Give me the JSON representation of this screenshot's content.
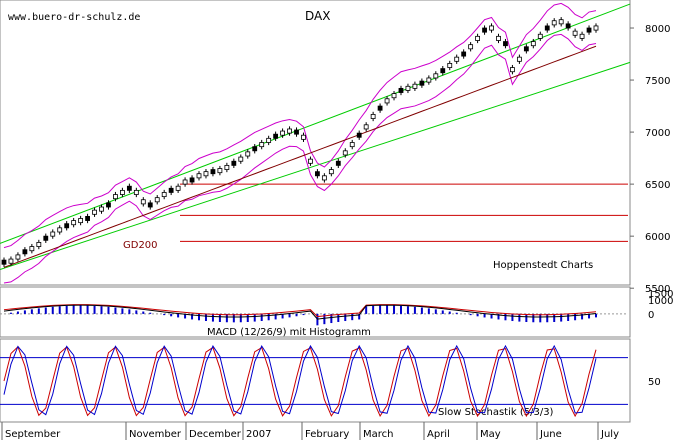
{
  "chart_data": {
    "type": "line",
    "title": "DAX",
    "watermark": "www.buero-dr-schulz.de",
    "source_label": "Hoppenstedt Charts",
    "x_labels": [
      "September",
      "November",
      "December",
      "2007",
      "February",
      "March",
      "April",
      "May",
      "June",
      "July"
    ],
    "price_panel": {
      "ylim": [
        5550,
        8250
      ],
      "y_ticks": [
        8000,
        7500,
        7000,
        6500,
        6000,
        5500
      ],
      "series_name": "DAX",
      "ma_label": "GD200",
      "price": [
        5750,
        5760,
        5800,
        5850,
        5880,
        5920,
        5980,
        6020,
        6060,
        6100,
        6130,
        6150,
        6170,
        6230,
        6260,
        6300,
        6380,
        6420,
        6460,
        6420,
        6330,
        6300,
        6350,
        6400,
        6440,
        6460,
        6520,
        6540,
        6580,
        6600,
        6620,
        6630,
        6660,
        6700,
        6740,
        6790,
        6840,
        6880,
        6920,
        6960,
        6990,
        7010,
        7000,
        6950,
        6720,
        6600,
        6560,
        6620,
        6700,
        6800,
        6880,
        6970,
        7050,
        7150,
        7230,
        7300,
        7350,
        7400,
        7420,
        7440,
        7470,
        7500,
        7540,
        7590,
        7640,
        7700,
        7750,
        7820,
        7900,
        7980,
        8000,
        7900,
        7850,
        7600,
        7700,
        7800,
        7850,
        7920,
        8000,
        8050,
        8060,
        8020,
        7950,
        7920,
        7980,
        8000
      ],
      "gd200": [
        5700,
        5725,
        5750,
        5775,
        5800,
        5825,
        5850,
        5875,
        5900,
        5925,
        5950,
        5975,
        6000,
        6025,
        6050,
        6075,
        6100,
        6125,
        6150,
        6175,
        6200,
        6225,
        6250,
        6275,
        6300,
        6325,
        6350,
        6375,
        6400,
        6425,
        6450,
        6475,
        6500,
        6525,
        6550,
        6575,
        6600,
        6625,
        6650,
        6675,
        6700,
        6725,
        6750,
        6775,
        6800,
        6825,
        6850,
        6875,
        6900,
        6925,
        6950,
        6975,
        7000,
        7025,
        7050,
        7075,
        7100,
        7125,
        7150,
        7175,
        7200,
        7225,
        7250,
        7275,
        7300,
        7325,
        7350,
        7375,
        7400,
        7425,
        7450,
        7475,
        7500,
        7525,
        7550,
        7575,
        7600,
        7625,
        7650,
        7675,
        7700,
        7725,
        7750,
        7775,
        7800,
        7825
      ],
      "horizontal_lines": [
        6500,
        6200,
        5950
      ]
    },
    "macd_panel": {
      "label": "MACD (12/26/9) mit Histogramm",
      "y_ticks": [
        1500,
        1000,
        0
      ]
    },
    "stochastic_panel": {
      "label": "Slow Stochastik (5/3/3)",
      "y_ticks": [
        50
      ],
      "levels": [
        80,
        20
      ]
    },
    "colors": {
      "price": "#000000",
      "channel": "#00cc00",
      "bollinger": "#cc00cc",
      "gd200": "#800000",
      "support": "#cc0000",
      "macd_hist": "#0000cc",
      "stoch_fast": "#cc0000",
      "stoch_slow": "#0000cc"
    }
  }
}
